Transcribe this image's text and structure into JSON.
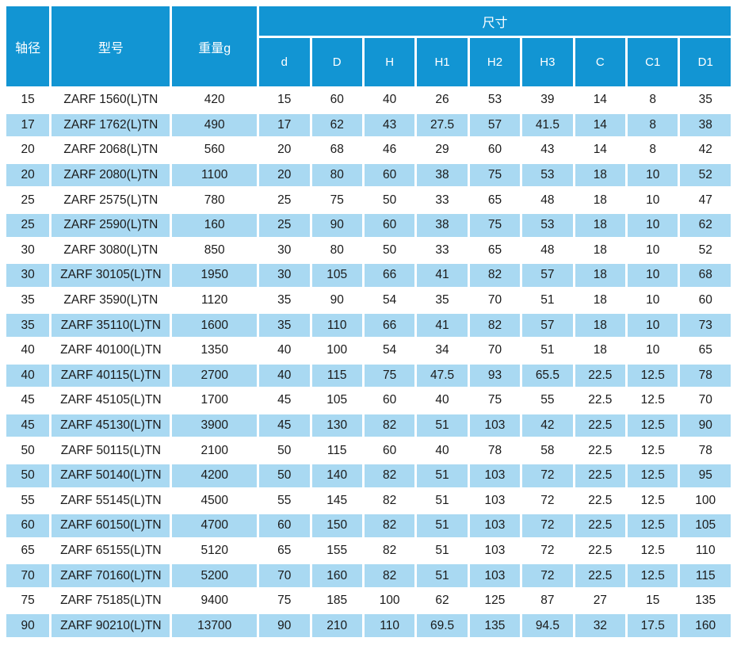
{
  "colors": {
    "header_blue": "#1295d3",
    "stripe_light_blue": "#a9d9f2",
    "background": "#ffffff",
    "header_text": "#ffffff",
    "body_text": "#1a1a1a"
  },
  "table": {
    "headers": {
      "shaft_diameter": "轴径",
      "model": "型号",
      "weight": "重量g",
      "dimensions_group": "尺寸",
      "dimension_cols": [
        "d",
        "D",
        "H",
        "H1",
        "H2",
        "H3",
        "C",
        "C1",
        "D1"
      ]
    },
    "rows": [
      [
        "15",
        "ZARF 1560(L)TN",
        "420",
        "15",
        "60",
        "40",
        "26",
        "53",
        "39",
        "14",
        "8",
        "35"
      ],
      [
        "17",
        "ZARF 1762(L)TN",
        "490",
        "17",
        "62",
        "43",
        "27.5",
        "57",
        "41.5",
        "14",
        "8",
        "38"
      ],
      [
        "20",
        "ZARF 2068(L)TN",
        "560",
        "20",
        "68",
        "46",
        "29",
        "60",
        "43",
        "14",
        "8",
        "42"
      ],
      [
        "20",
        "ZARF 2080(L)TN",
        "1100",
        "20",
        "80",
        "60",
        "38",
        "75",
        "53",
        "18",
        "10",
        "52"
      ],
      [
        "25",
        "ZARF 2575(L)TN",
        "780",
        "25",
        "75",
        "50",
        "33",
        "65",
        "48",
        "18",
        "10",
        "47"
      ],
      [
        "25",
        "ZARF 2590(L)TN",
        "160",
        "25",
        "90",
        "60",
        "38",
        "75",
        "53",
        "18",
        "10",
        "62"
      ],
      [
        "30",
        "ZARF 3080(L)TN",
        "850",
        "30",
        "80",
        "50",
        "33",
        "65",
        "48",
        "18",
        "10",
        "52"
      ],
      [
        "30",
        "ZARF 30105(L)TN",
        "1950",
        "30",
        "105",
        "66",
        "41",
        "82",
        "57",
        "18",
        "10",
        "68"
      ],
      [
        "35",
        "ZARF 3590(L)TN",
        "1120",
        "35",
        "90",
        "54",
        "35",
        "70",
        "51",
        "18",
        "10",
        "60"
      ],
      [
        "35",
        "ZARF 35110(L)TN",
        "1600",
        "35",
        "110",
        "66",
        "41",
        "82",
        "57",
        "18",
        "10",
        "73"
      ],
      [
        "40",
        "ZARF 40100(L)TN",
        "1350",
        "40",
        "100",
        "54",
        "34",
        "70",
        "51",
        "18",
        "10",
        "65"
      ],
      [
        "40",
        "ZARF 40115(L)TN",
        "2700",
        "40",
        "115",
        "75",
        "47.5",
        "93",
        "65.5",
        "22.5",
        "12.5",
        "78"
      ],
      [
        "45",
        "ZARF 45105(L)TN",
        "1700",
        "45",
        "105",
        "60",
        "40",
        "75",
        "55",
        "22.5",
        "12.5",
        "70"
      ],
      [
        "45",
        "ZARF 45130(L)TN",
        "3900",
        "45",
        "130",
        "82",
        "51",
        "103",
        "42",
        "22.5",
        "12.5",
        "90"
      ],
      [
        "50",
        "ZARF 50115(L)TN",
        "2100",
        "50",
        "115",
        "60",
        "40",
        "78",
        "58",
        "22.5",
        "12.5",
        "78"
      ],
      [
        "50",
        "ZARF 50140(L)TN",
        "4200",
        "50",
        "140",
        "82",
        "51",
        "103",
        "72",
        "22.5",
        "12.5",
        "95"
      ],
      [
        "55",
        "ZARF 55145(L)TN",
        "4500",
        "55",
        "145",
        "82",
        "51",
        "103",
        "72",
        "22.5",
        "12.5",
        "100"
      ],
      [
        "60",
        "ZARF 60150(L)TN",
        "4700",
        "60",
        "150",
        "82",
        "51",
        "103",
        "72",
        "22.5",
        "12.5",
        "105"
      ],
      [
        "65",
        "ZARF 65155(L)TN",
        "5120",
        "65",
        "155",
        "82",
        "51",
        "103",
        "72",
        "22.5",
        "12.5",
        "110"
      ],
      [
        "70",
        "ZARF 70160(L)TN",
        "5200",
        "70",
        "160",
        "82",
        "51",
        "103",
        "72",
        "22.5",
        "12.5",
        "115"
      ],
      [
        "75",
        "ZARF 75185(L)TN",
        "9400",
        "75",
        "185",
        "100",
        "62",
        "125",
        "87",
        "27",
        "15",
        "135"
      ],
      [
        "90",
        "ZARF 90210(L)TN",
        "13700",
        "90",
        "210",
        "110",
        "69.5",
        "135",
        "94.5",
        "32",
        "17.5",
        "160"
      ]
    ]
  }
}
